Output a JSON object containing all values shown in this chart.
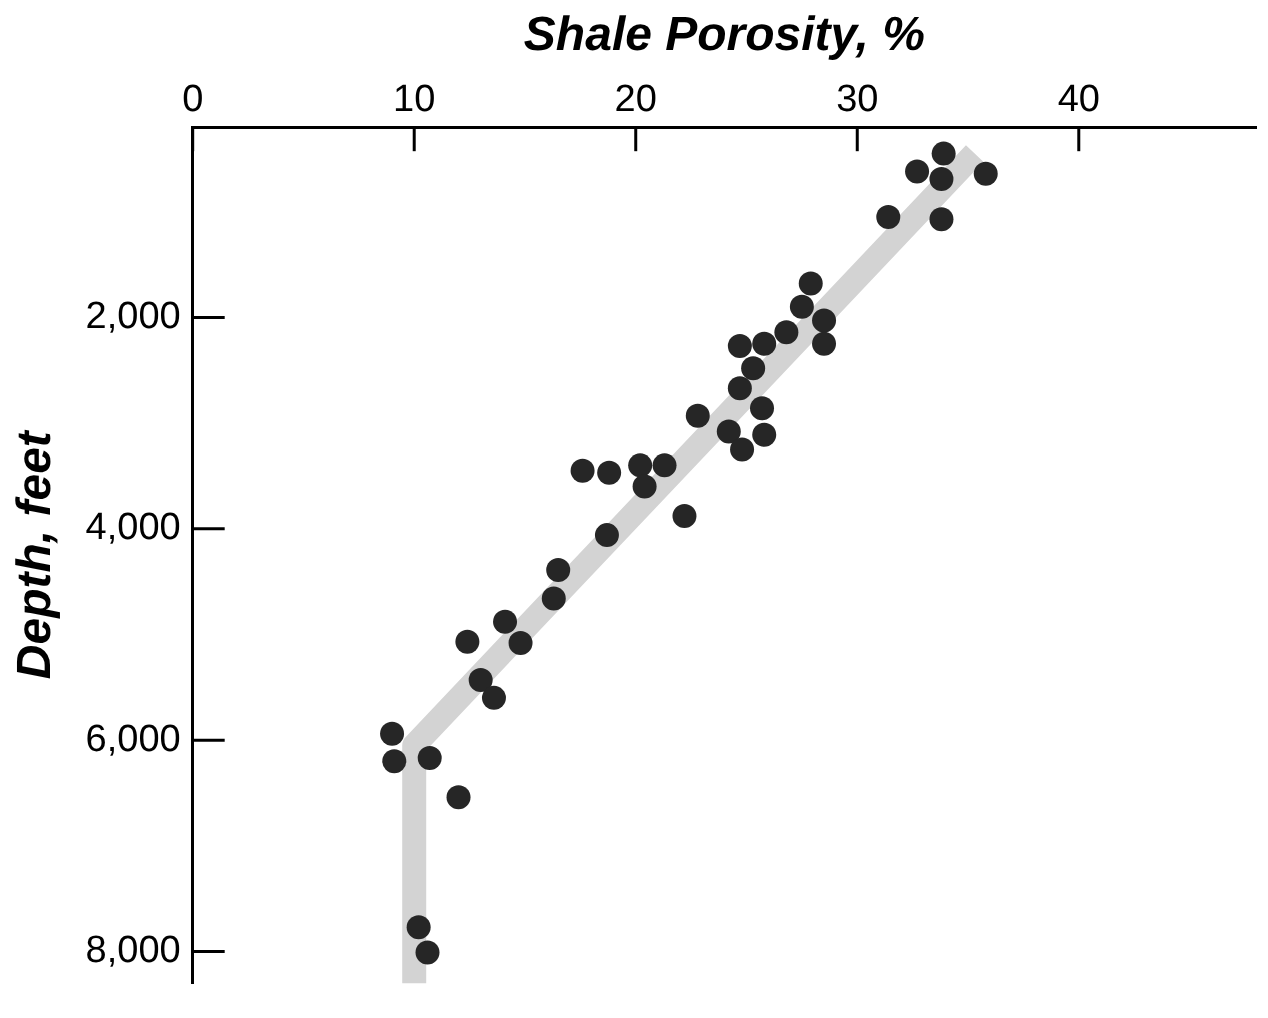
{
  "chart_data": {
    "type": "scatter",
    "xlabel": "Shale Porosity, %",
    "ylabel": "Depth, feet",
    "marker": "circle",
    "grid": false,
    "legend": false,
    "xlim": [
      0,
      48
    ],
    "xticks": [
      0,
      10,
      20,
      30,
      40
    ],
    "ylim": [
      8300,
      200
    ],
    "yticks": [
      {
        "value": 2000,
        "label": "2,000"
      },
      {
        "value": 4000,
        "label": "4,000"
      },
      {
        "value": 6000,
        "label": "6,000"
      },
      {
        "value": 8000,
        "label": "8,000"
      }
    ],
    "series": [
      {
        "type": "line",
        "marker": "none",
        "color": "#d3d3d3",
        "x": [
          35.3,
          10,
          10
        ],
        "values": [
          450,
          6050,
          8300
        ]
      },
      {
        "color": "#262626",
        "x": [
          33.9,
          32.7,
          33.8,
          35.8,
          31.4,
          33.8,
          27.9,
          27.5,
          28.5,
          28.5,
          26.8,
          25.8,
          24.7,
          25.3,
          24.7,
          25.7,
          22.8,
          24.2,
          25.8,
          24.8,
          17.6,
          18.8,
          20.2,
          21.3,
          20.4,
          22.2,
          18.7,
          16.5,
          16.3,
          14.1,
          12.4,
          14.8,
          13.0,
          13.6,
          9.0,
          9.1,
          10.7,
          12.0,
          10.2,
          10.6
        ],
        "values": [
          450,
          620,
          690,
          640,
          1050,
          1070,
          1680,
          1900,
          2030,
          2250,
          2140,
          2250,
          2270,
          2480,
          2670,
          2860,
          2930,
          3080,
          3110,
          3250,
          3450,
          3470,
          3400,
          3400,
          3600,
          3880,
          4060,
          4390,
          4660,
          4880,
          5070,
          5080,
          5430,
          5600,
          5940,
          6200,
          6170,
          6540,
          7770,
          8010
        ]
      }
    ]
  }
}
